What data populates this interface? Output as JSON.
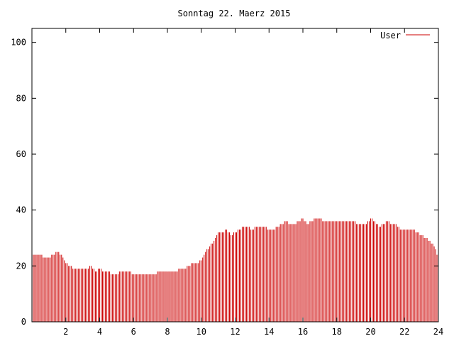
{
  "chart_data": {
    "type": "bar",
    "title": "Sonntag 22. Maerz 2015",
    "xlabel": "",
    "ylabel": "",
    "xlim": [
      0,
      24
    ],
    "ylim": [
      0,
      105
    ],
    "x_ticks": [
      2,
      4,
      6,
      8,
      10,
      12,
      14,
      16,
      18,
      20,
      22,
      24
    ],
    "y_ticks": [
      0,
      20,
      40,
      60,
      80,
      100
    ],
    "x_tick_labels": [
      "2",
      "4",
      "6",
      "8",
      "10",
      "12",
      "14",
      "16",
      "18",
      "20",
      "22",
      "24"
    ],
    "y_tick_labels": [
      "0",
      "20",
      "40",
      "60",
      "80",
      "100"
    ],
    "legend_position": "top-right",
    "grid": false,
    "series": [
      {
        "name": "User",
        "color": "#cc0000",
        "x": [
          0.0,
          0.25,
          0.5,
          0.75,
          1.0,
          1.25,
          1.5,
          1.75,
          2.0,
          2.25,
          2.5,
          2.75,
          3.0,
          3.25,
          3.5,
          3.75,
          4.0,
          4.25,
          4.5,
          4.75,
          5.0,
          5.25,
          5.5,
          5.75,
          6.0,
          6.25,
          6.5,
          6.75,
          7.0,
          7.25,
          7.5,
          7.75,
          8.0,
          8.25,
          8.5,
          8.75,
          9.0,
          9.25,
          9.5,
          9.75,
          10.0,
          10.25,
          10.5,
          10.75,
          11.0,
          11.25,
          11.5,
          11.75,
          12.0,
          12.25,
          12.5,
          12.75,
          13.0,
          13.25,
          13.5,
          13.75,
          14.0,
          14.25,
          14.5,
          14.75,
          15.0,
          15.25,
          15.5,
          15.75,
          16.0,
          16.25,
          16.5,
          16.75,
          17.0,
          17.25,
          17.5,
          17.75,
          18.0,
          18.25,
          18.5,
          18.75,
          19.0,
          19.25,
          19.5,
          19.75,
          20.0,
          20.25,
          20.5,
          20.75,
          21.0,
          21.25,
          21.5,
          21.75,
          22.0,
          22.25,
          22.5,
          22.75,
          23.0,
          23.25,
          23.5,
          23.75,
          24.0
        ],
        "values": [
          24,
          24,
          24,
          23,
          23,
          24,
          25,
          24,
          21,
          20,
          19,
          19,
          19,
          19,
          20,
          18,
          19,
          18,
          18,
          17,
          17,
          18,
          18,
          18,
          17,
          17,
          17,
          17,
          17,
          17,
          18,
          18,
          18,
          18,
          18,
          19,
          19,
          20,
          21,
          21,
          22,
          25,
          27,
          29,
          32,
          32,
          33,
          31,
          32,
          33,
          34,
          34,
          33,
          34,
          34,
          34,
          33,
          33,
          34,
          35,
          36,
          35,
          35,
          36,
          37,
          35,
          36,
          37,
          37,
          36,
          36,
          36,
          36,
          36,
          36,
          36,
          36,
          35,
          35,
          35,
          37,
          36,
          34,
          35,
          36,
          35,
          35,
          33,
          33,
          33,
          33,
          32,
          31,
          30,
          29,
          27,
          23
        ]
      }
    ]
  }
}
